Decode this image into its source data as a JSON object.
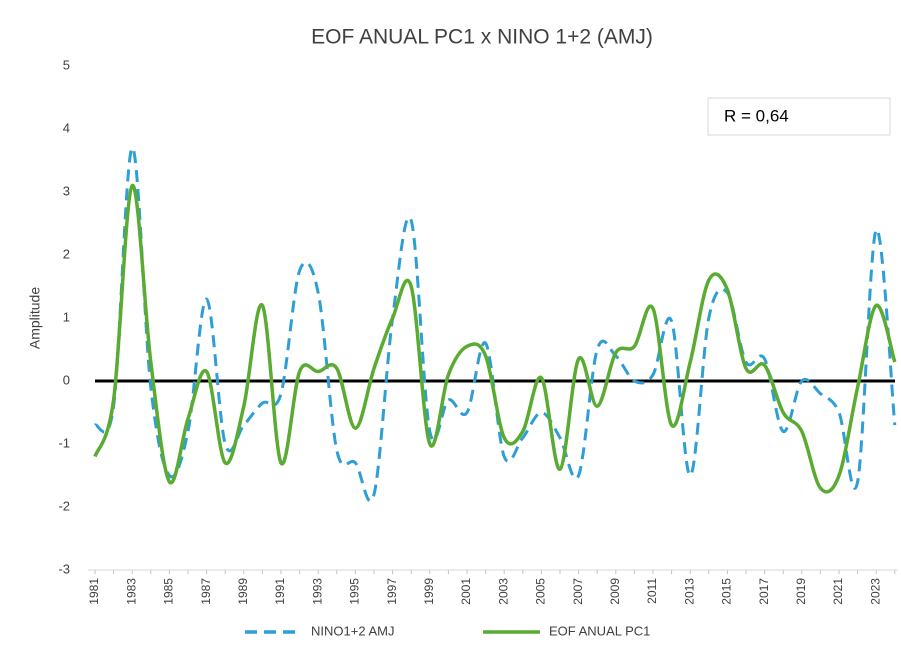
{
  "chart_data": {
    "type": "line",
    "title": "EOF ANUAL PC1 x NINO 1+2 (AMJ)",
    "y_label": "Amplitude",
    "annotation": "R = 0,64",
    "categories": [
      "1981",
      null,
      "1983",
      null,
      "1985",
      null,
      "1987",
      null,
      "1989",
      null,
      "1991",
      null,
      "1993",
      null,
      "1995",
      null,
      "1997",
      null,
      "1999",
      null,
      "2001",
      null,
      "2003",
      null,
      "2005",
      null,
      "2007",
      null,
      "2009",
      null,
      "2011",
      null,
      "2013",
      null,
      "2015",
      null,
      "2017",
      null,
      "2019",
      null,
      "2021",
      null,
      "2023",
      null
    ],
    "series": [
      {
        "name": "NINO1+2 AMJ",
        "color": "#2e9fd6",
        "dashed": true,
        "values": [
          -0.7,
          -0.4,
          3.7,
          -0.1,
          -1.5,
          -0.8,
          1.3,
          -1.0,
          -0.7,
          -0.35,
          -0.2,
          1.75,
          1.4,
          -1.1,
          -1.3,
          -1.8,
          1.0,
          2.55,
          -0.8,
          -0.3,
          -0.5,
          0.6,
          -1.2,
          -0.9,
          -0.5,
          -0.9,
          -1.5,
          0.5,
          0.4,
          0.0,
          0.1,
          0.95,
          -1.5,
          1.0,
          1.4,
          0.3,
          0.35,
          -0.8,
          0.0,
          -0.2,
          -0.5,
          -1.6,
          2.4,
          -0.7
        ]
      },
      {
        "name": "EOF ANUAL PC1",
        "color": "#5aab32",
        "dashed": false,
        "values": [
          -1.2,
          -0.3,
          3.1,
          0.3,
          -1.6,
          -0.6,
          0.15,
          -1.3,
          -0.4,
          1.2,
          -1.3,
          0.15,
          0.15,
          0.2,
          -0.75,
          0.2,
          1.0,
          1.5,
          -1.0,
          0.1,
          0.55,
          0.4,
          -0.9,
          -0.8,
          0.05,
          -1.4,
          0.35,
          -0.4,
          0.45,
          0.55,
          1.15,
          -0.7,
          0.3,
          1.6,
          1.45,
          0.2,
          0.25,
          -0.5,
          -0.8,
          -1.7,
          -1.5,
          -0.1,
          1.2,
          0.3
        ]
      }
    ],
    "ylim": [
      -3,
      5
    ],
    "yticks": [
      -3,
      -2,
      -1,
      0,
      1,
      2,
      3,
      4,
      5
    ],
    "grid": false,
    "zero_line": true,
    "legend": "bottom"
  }
}
